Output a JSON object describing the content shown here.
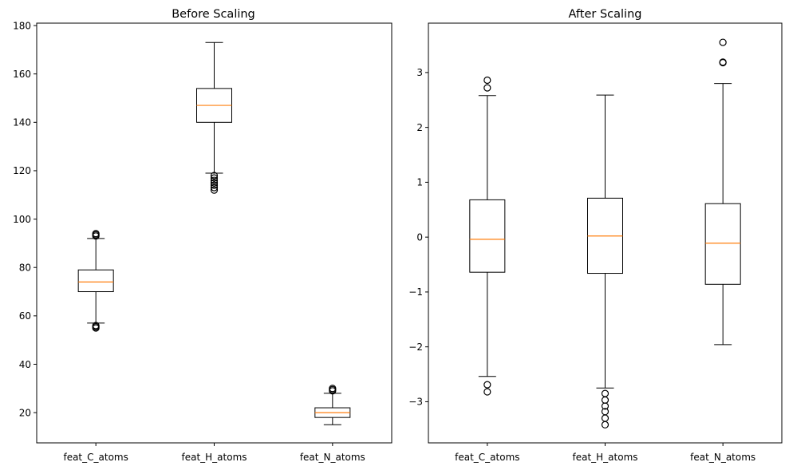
{
  "chart_data": [
    {
      "type": "boxplot",
      "title": "Before Scaling",
      "xlabel": "",
      "ylabel": "",
      "categories": [
        "feat_C_atoms",
        "feat_H_atoms",
        "feat_N_atoms"
      ],
      "ylim": [
        7.5,
        181
      ],
      "yticks": [
        20,
        40,
        60,
        80,
        100,
        120,
        140,
        160,
        180
      ],
      "ytick_labels": [
        "20",
        "40",
        "60",
        "80",
        "100",
        "120",
        "140",
        "160",
        "180"
      ],
      "boxes": [
        {
          "category": "feat_C_atoms",
          "whisker_low": 57,
          "q1": 70,
          "median": 74,
          "q3": 79,
          "whisker_high": 92,
          "outliers": [
            55,
            55.5,
            56,
            93,
            93.5,
            94
          ]
        },
        {
          "category": "feat_H_atoms",
          "whisker_low": 119,
          "q1": 140,
          "median": 147,
          "q3": 154,
          "whisker_high": 173,
          "outliers": [
            112,
            113,
            114,
            115,
            116,
            117,
            118
          ]
        },
        {
          "category": "feat_N_atoms",
          "whisker_low": 15,
          "q1": 18,
          "median": 20,
          "q3": 22,
          "whisker_high": 28,
          "outliers": [
            29,
            29.5,
            30
          ]
        }
      ],
      "grid": false,
      "colors": {
        "box": "#000000",
        "median": "#ff7f0e"
      }
    },
    {
      "type": "boxplot",
      "title": "After Scaling",
      "xlabel": "",
      "ylabel": "",
      "categories": [
        "feat_C_atoms",
        "feat_H_atoms",
        "feat_N_atoms"
      ],
      "ylim": [
        -3.75,
        3.9
      ],
      "yticks": [
        -3,
        -2,
        -1,
        0,
        1,
        2,
        3
      ],
      "ytick_labels": [
        "−3",
        "−2",
        "−1",
        "0",
        "1",
        "2",
        "3"
      ],
      "boxes": [
        {
          "category": "feat_C_atoms",
          "whisker_low": -2.54,
          "q1": -0.64,
          "median": -0.04,
          "q3": 0.68,
          "whisker_high": 2.58,
          "outliers": [
            -2.82,
            -2.69,
            2.72,
            2.86
          ]
        },
        {
          "category": "feat_H_atoms",
          "whisker_low": -2.75,
          "q1": -0.66,
          "median": 0.02,
          "q3": 0.71,
          "whisker_high": 2.59,
          "outliers": [
            -2.85,
            -2.97,
            -3.08,
            -3.18,
            -3.3,
            -3.42
          ]
        },
        {
          "category": "feat_N_atoms",
          "whisker_low": -1.96,
          "q1": -0.86,
          "median": -0.11,
          "q3": 0.61,
          "whisker_high": 2.8,
          "outliers": [
            3.18,
            3.19,
            3.55
          ]
        }
      ],
      "grid": false,
      "colors": {
        "box": "#000000",
        "median": "#ff7f0e"
      }
    }
  ]
}
